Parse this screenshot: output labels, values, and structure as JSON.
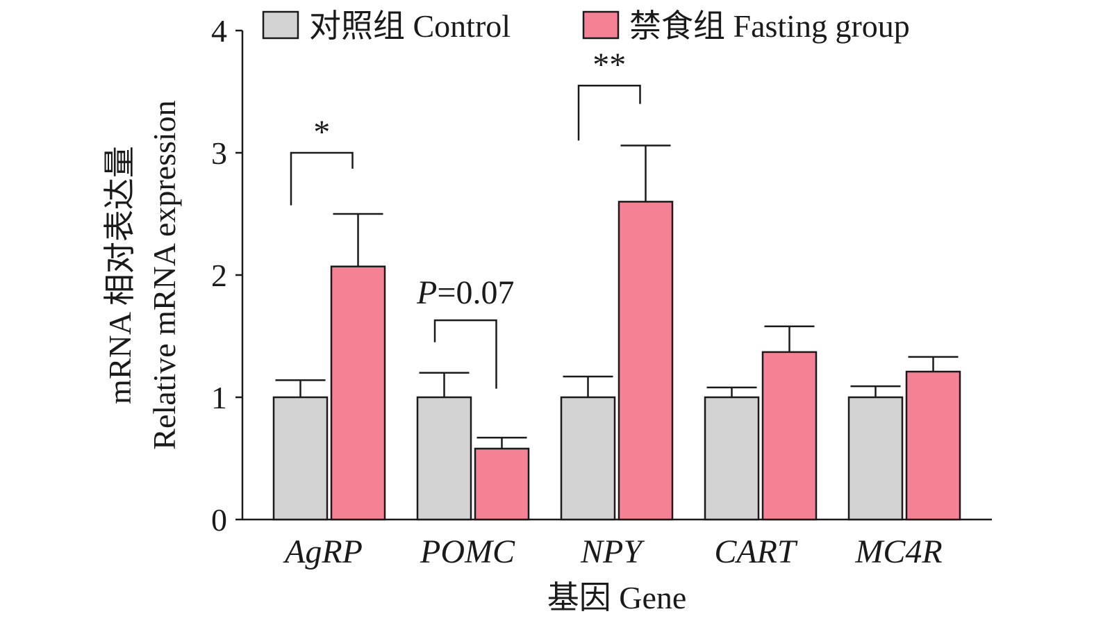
{
  "chart_data": {
    "type": "bar",
    "categories": [
      "AgRP",
      "POMC",
      "NPY",
      "CART",
      "MC4R"
    ],
    "series": [
      {
        "name": "对照组 Control",
        "color": "#d3d3d3",
        "values": [
          1.0,
          1.0,
          1.0,
          1.0,
          1.0
        ],
        "errors": [
          0.14,
          0.2,
          0.17,
          0.08,
          0.09
        ]
      },
      {
        "name": "禁食组 Fasting group",
        "color": "#f48194",
        "values": [
          2.07,
          0.58,
          2.6,
          1.37,
          1.21
        ],
        "errors": [
          0.43,
          0.09,
          0.46,
          0.21,
          0.12
        ]
      }
    ],
    "xlabel": "基因 Gene",
    "ylabel_line1": "mRNA 相对表达量",
    "ylabel_line2": "Relative mRNA expression",
    "ylim": [
      0,
      4
    ],
    "yticks": [
      "0",
      "1",
      "2",
      "3",
      "4"
    ],
    "grid": false,
    "legend_position": "top",
    "annotations": [
      {
        "category": "AgRP",
        "label": "*",
        "left_y": 2.57,
        "right_y": 2.87,
        "top_y": 3.0
      },
      {
        "category": "POMC",
        "label_prefix": "P",
        "label_suffix": "=0.07",
        "left_y": 1.45,
        "right_y": 1.07,
        "top_y": 1.63
      },
      {
        "category": "NPY",
        "label": "**",
        "left_y": 3.1,
        "right_y": 3.4,
        "top_y": 3.55
      }
    ]
  }
}
